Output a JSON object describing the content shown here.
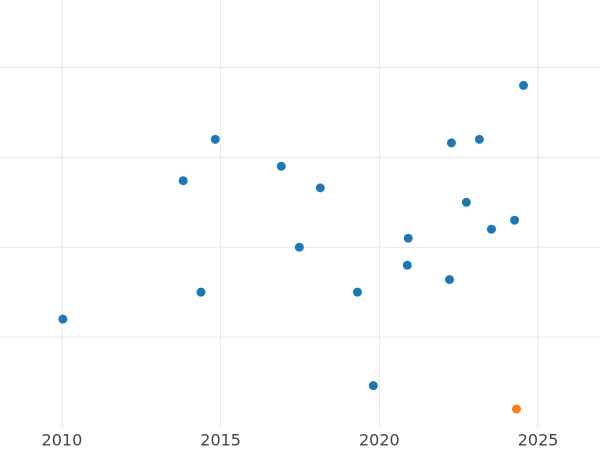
{
  "chart_data": {
    "type": "scatter",
    "xlim": [
      2008.05,
      2026.95
    ],
    "xticks": [
      2010,
      2015,
      2020,
      2025
    ],
    "ylim": [
      0,
      4.75
    ],
    "yticks": [
      1,
      2,
      3,
      4
    ],
    "grid": true,
    "series": [
      {
        "color": "#1f77b4",
        "x": [
          2010.03,
          2013.82,
          2014.38,
          2014.83,
          2016.91,
          2017.48,
          2018.14,
          2019.31,
          2019.81,
          2020.88,
          2020.91,
          2022.21,
          2022.27,
          2022.74,
          2023.15,
          2023.53,
          2024.26,
          2024.54
        ],
        "values": [
          1.2,
          2.74,
          1.5,
          3.2,
          2.9,
          2.0,
          2.66,
          1.5,
          0.46,
          1.8,
          2.1,
          1.64,
          3.16,
          2.5,
          3.2,
          2.2,
          2.3,
          3.8
        ]
      },
      {
        "color": "#ff7f0e",
        "x": [
          2024.32
        ],
        "values": [
          0.2
        ]
      }
    ]
  }
}
